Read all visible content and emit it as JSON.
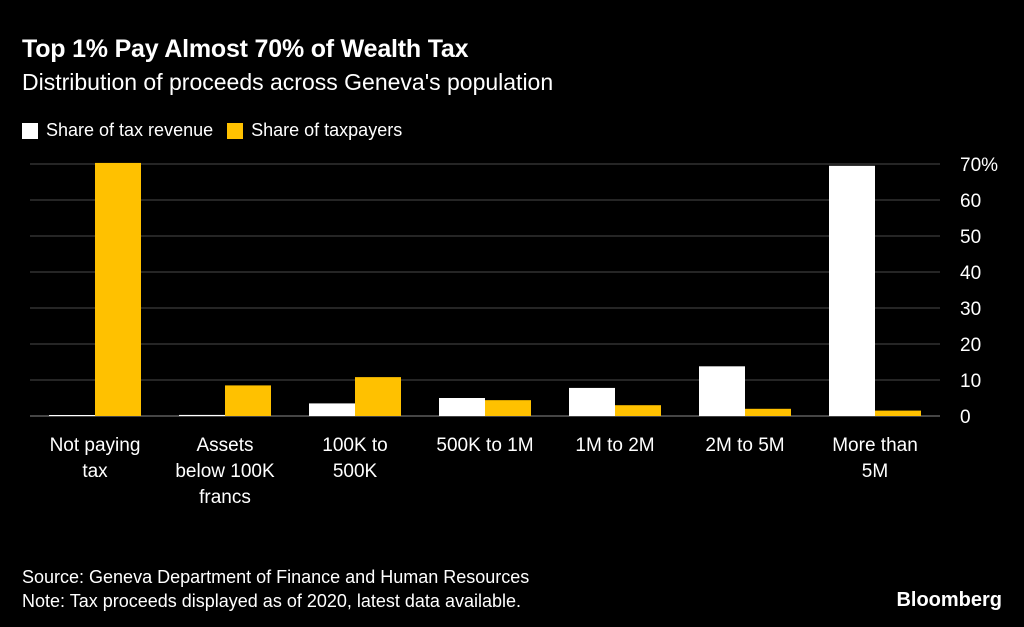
{
  "chart_data": {
    "type": "bar",
    "title": "Top 1% Pay Almost 70% of Wealth Tax",
    "subtitle": "Distribution of proceeds across Geneva's population",
    "categories": [
      [
        "Not paying",
        "tax"
      ],
      [
        "Assets",
        "below 100K",
        "francs"
      ],
      [
        "100K to",
        "500K"
      ],
      [
        "500K to 1M"
      ],
      [
        "1M to 2M"
      ],
      [
        "2M to 5M"
      ],
      [
        "More than",
        "5M"
      ]
    ],
    "series": [
      {
        "name": "Share of tax revenue",
        "color": "#ffffff",
        "values": [
          0.2,
          0.3,
          3.5,
          5,
          7.8,
          13.8,
          69.5
        ]
      },
      {
        "name": "Share of taxpayers",
        "color": "#ffc100",
        "values": [
          70.3,
          8.5,
          10.8,
          4.4,
          3,
          2,
          1.5
        ]
      }
    ],
    "ylim": [
      0,
      70
    ],
    "yticks": [
      0,
      10,
      20,
      30,
      40,
      50,
      60,
      70
    ],
    "ytick_labels": [
      "0",
      "10",
      "20",
      "30",
      "40",
      "50",
      "60",
      "70%"
    ],
    "grid": true,
    "legend_position": "top-left"
  },
  "footer": {
    "source": "Source: Geneva Department of Finance and Human Resources",
    "note": "Note: Tax proceeds displayed as of 2020, latest data available."
  },
  "brand": "Bloomberg"
}
